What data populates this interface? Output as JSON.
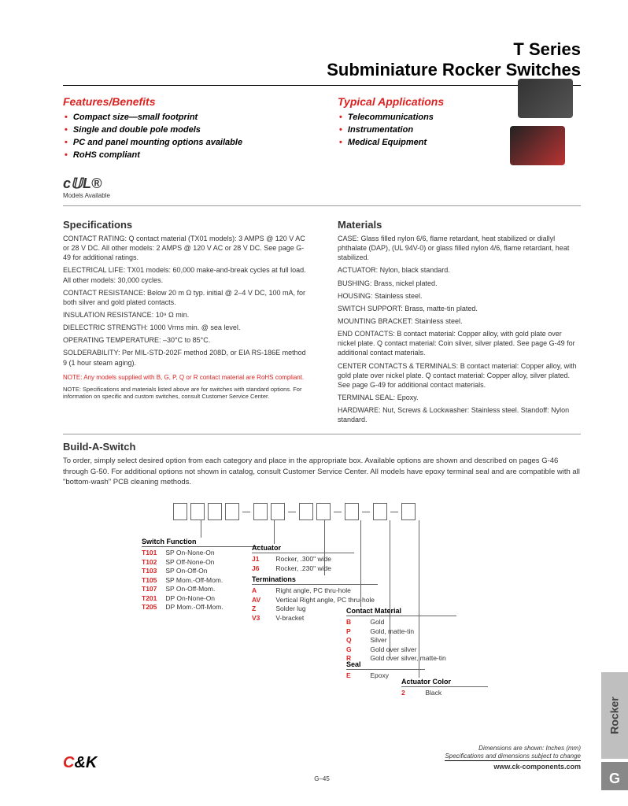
{
  "title": {
    "line1": "T Series",
    "line2": "Subminiature Rocker Switches"
  },
  "features": {
    "header": "Features/Benefits",
    "items": [
      "Compact size—small footprint",
      "Single and double pole models",
      "PC and panel mounting options available",
      "RoHS compliant"
    ]
  },
  "applications": {
    "header": "Typical Applications",
    "items": [
      "Telecommunications",
      "Instrumentation",
      "Medical Equipment"
    ]
  },
  "ul_note": "Models Available",
  "specs": {
    "header": "Specifications",
    "items": [
      {
        "label": "CONTACT RATING:",
        "text": "Q contact material (TX01 models): 3 AMPS @ 120 V AC or 28 V DC. All other models: 2 AMPS @ 120 V AC or 28 V DC. See page G-49 for additional ratings."
      },
      {
        "label": "ELECTRICAL LIFE:",
        "text": "TX01 models: 60,000 make-and-break cycles at full load. All other models: 30,000 cycles."
      },
      {
        "label": "CONTACT RESISTANCE:",
        "text": "Below 20 m Ω typ. initial @ 2–4 V DC, 100 mA, for both silver and gold plated contacts."
      },
      {
        "label": "INSULATION RESISTANCE:",
        "text": "10⁹ Ω min."
      },
      {
        "label": "DIELECTRIC STRENGTH:",
        "text": "1000 Vrms min. @ sea level."
      },
      {
        "label": "OPERATING TEMPERATURE:",
        "text": "–30°C to 85°C."
      },
      {
        "label": "SOLDERABILITY:",
        "text": "Per MIL-STD-202F method 208D, or EIA RS-186E method 9 (1 hour steam aging)."
      }
    ],
    "note_red": "NOTE: Any models supplied with B, G, P, Q or R contact material are RoHS compliant.",
    "note_small": "NOTE: Specifications and materials listed above are for switches with standard options. For information on specific and custom switches, consult Customer Service Center."
  },
  "materials": {
    "header": "Materials",
    "items": [
      {
        "label": "CASE:",
        "text": "Glass filled nylon 6/6, flame retardant, heat stabilized or diallyl phthalate (DAP), (UL 94V-0) or glass filled nylon 4/6, flame retardant, heat stabilized."
      },
      {
        "label": "ACTUATOR:",
        "text": "Nylon, black standard."
      },
      {
        "label": "BUSHING:",
        "text": "Brass, nickel plated."
      },
      {
        "label": "HOUSING:",
        "text": "Stainless steel."
      },
      {
        "label": "SWITCH SUPPORT:",
        "text": "Brass, matte-tin plated."
      },
      {
        "label": "MOUNTING BRACKET:",
        "text": "Stainless steel."
      },
      {
        "label": "END CONTACTS:",
        "text": "B contact material: Copper alloy, with gold plate over nickel plate. Q contact material: Coin silver, silver plated. See page G-49 for additional contact materials."
      },
      {
        "label": "CENTER CONTACTS & TERMINALS:",
        "text": "B contact material: Copper alloy, with gold plate over nickel plate. Q contact material: Copper alloy, silver plated. See page G-49 for additional contact materials."
      },
      {
        "label": "TERMINAL SEAL:",
        "text": "Epoxy."
      },
      {
        "label": "HARDWARE:",
        "text": "Nut, Screws & Lockwasher: Stainless steel. Standoff: Nylon standard."
      }
    ]
  },
  "build": {
    "header": "Build-A-Switch",
    "text": "To order, simply select desired option from each category and place in the appropriate box. Available options are shown and described on pages G-46 through G-50. For additional options not shown in catalog, consult Customer Service Center. All models have epoxy terminal seal and are compatible with all \"bottom-wash\" PCB cleaning methods.",
    "groups": {
      "switch_function": {
        "title": "Switch Function",
        "items": [
          {
            "code": "T101",
            "desc": "SP On-None-On"
          },
          {
            "code": "T102",
            "desc": "SP Off-None-On"
          },
          {
            "code": "T103",
            "desc": "SP On-Off-On"
          },
          {
            "code": "T105",
            "desc": "SP Mom.-Off-Mom."
          },
          {
            "code": "T107",
            "desc": "SP On-Off-Mom."
          },
          {
            "code": "T201",
            "desc": "DP On-None-On"
          },
          {
            "code": "T205",
            "desc": "DP Mom.-Off-Mom."
          }
        ]
      },
      "actuator": {
        "title": "Actuator",
        "items": [
          {
            "code": "J1",
            "desc": "Rocker, .300\" wide"
          },
          {
            "code": "J6",
            "desc": "Rocker, .230\" wide"
          }
        ]
      },
      "terminations": {
        "title": "Terminations",
        "items": [
          {
            "code": "A",
            "desc": "Right angle, PC thru-hole"
          },
          {
            "code": "AV",
            "desc": "Vertical Right angle, PC thru-hole"
          },
          {
            "code": "Z",
            "desc": "Solder lug"
          },
          {
            "code": "V3",
            "desc": "V-bracket"
          }
        ]
      },
      "contact_material": {
        "title": "Contact Material",
        "items": [
          {
            "code": "B",
            "desc": "Gold"
          },
          {
            "code": "P",
            "desc": "Gold, matte-tin"
          },
          {
            "code": "Q",
            "desc": "Silver"
          },
          {
            "code": "G",
            "desc": "Gold over silver"
          },
          {
            "code": "R",
            "desc": "Gold over silver, matte-tin"
          }
        ]
      },
      "seal": {
        "title": "Seal",
        "items": [
          {
            "code": "E",
            "desc": "Epoxy"
          }
        ]
      },
      "actuator_color": {
        "title": "Actuator Color",
        "items": [
          {
            "code": "2",
            "desc": "Black"
          }
        ]
      }
    }
  },
  "side_tab": "Rocker",
  "side_tab2": "G",
  "footer": {
    "dim_note": "Dimensions are shown: Inches (mm)",
    "change_note": "Specifications and dimensions subject to change",
    "url": "www.ck-components.com",
    "page": "G–45"
  }
}
